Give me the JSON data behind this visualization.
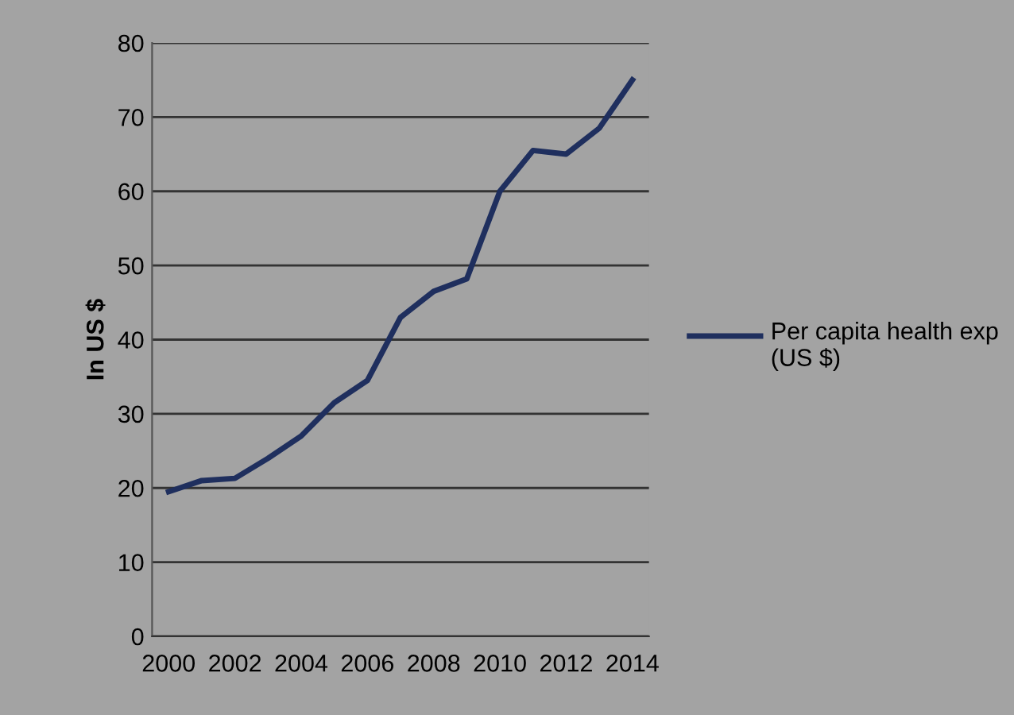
{
  "chart_data": {
    "type": "line",
    "ylabel": "In US $",
    "categories": [
      "2000",
      null,
      "2002",
      null,
      "2004",
      null,
      "2006",
      null,
      "2008",
      null,
      "2010",
      null,
      "2012",
      null,
      "2014"
    ],
    "series": [
      {
        "name": "Per capita health exp (US $)",
        "color": "#1f2f5e",
        "values": [
          19.5,
          21,
          21.3,
          24,
          27,
          31.5,
          34.5,
          43,
          46.5,
          48.2,
          60,
          65.5,
          65,
          68.5,
          75
        ]
      }
    ],
    "ylim": [
      0,
      80
    ],
    "yticks": [
      0,
      10,
      20,
      30,
      40,
      50,
      60,
      70,
      80
    ],
    "grid": "y",
    "legend": "right"
  }
}
